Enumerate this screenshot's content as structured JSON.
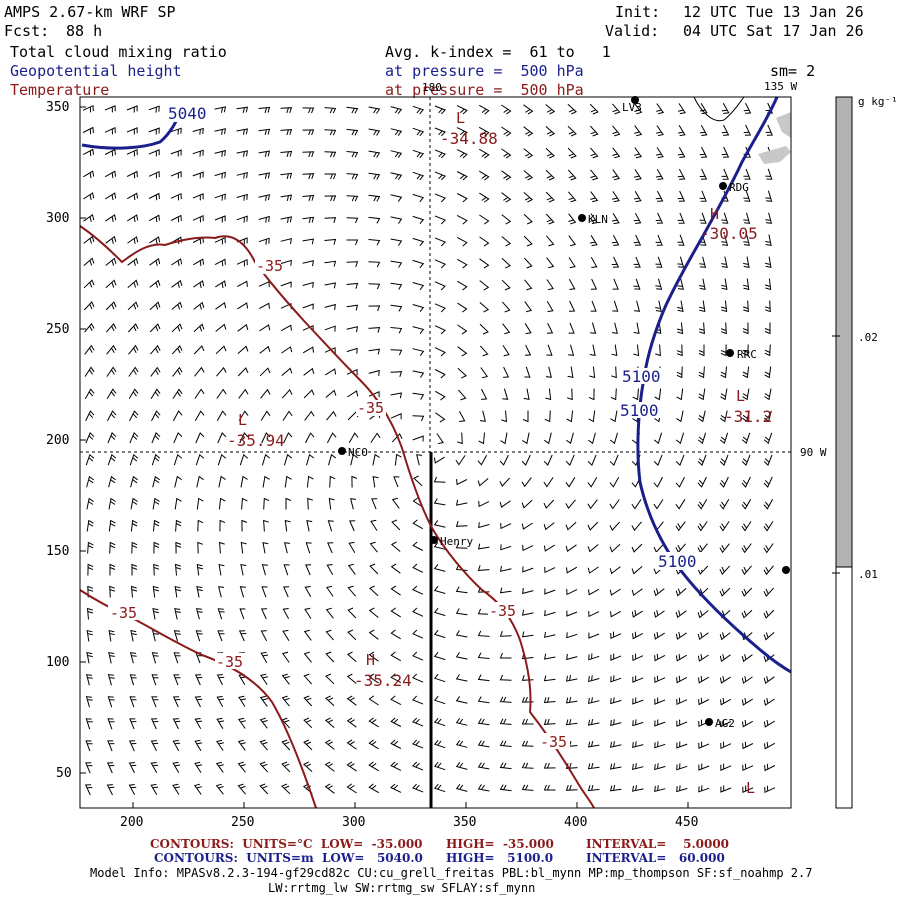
{
  "header": {
    "model": "AMPS 2.67-km WRF SP",
    "fcst_label": "Fcst:",
    "fcst_value": "88 h",
    "init_label": "Init:",
    "init_value": "12 UTC Tue 13 Jan 26",
    "valid_label": "Valid:",
    "valid_value": "04 UTC Sat 17 Jan 26"
  },
  "fields": {
    "f1": "Total cloud mixing ratio",
    "f2": "Geopotential height",
    "f3": "Temperature",
    "avg": "Avg. k-index =  61 to   1",
    "p1": "at pressure =  500 hPa",
    "p2": "at pressure =  500 hPa",
    "sm": "sm= 2"
  },
  "map": {
    "x_ticks": [
      "200",
      "250",
      "300",
      "350",
      "400",
      "450"
    ],
    "y_ticks": [
      "350",
      "300",
      "250",
      "200",
      "150",
      "100",
      "50"
    ],
    "meridian_top": "180",
    "meridian_135": "135 W",
    "meridian_90": "90 W",
    "stations": [
      "RDG",
      "KLN",
      "RRC",
      "NCO",
      "Henry",
      "AG2",
      "LV3"
    ],
    "labels": {
      "l1": "L",
      "l1v": "-34.88",
      "l2": "L",
      "l2v": "-35.94",
      "h1": "H",
      "h1v": "-35.24",
      "h2": "H",
      "h2v": "-30.05",
      "l3": "L",
      "l3v": "-31.2",
      "l4": "L",
      "t35": "-35",
      "z5040": "5040",
      "z5100": "5100"
    },
    "colors": {
      "temperature": "#8b1a1a",
      "height": "#1a1f8c",
      "cloud": "#c8c8c8"
    }
  },
  "colorbar": {
    "unit": "g kg⁻¹",
    "ticks": [
      ".02",
      ".01"
    ],
    "gray_fraction_top": 0.66
  },
  "footer": {
    "line1_a": "CONTOURS:  UNITS=°C  LOW=  -35.000",
    "line1_b": "HIGH=  -35.000",
    "line1_c": "INTERVAL=    5.0000",
    "line2_a": "CONTOURS:  UNITS=m  LOW=   5040.0",
    "line2_b": "HIGH=   5100.0",
    "line2_c": "INTERVAL=   60.000",
    "model_info": "Model Info: MPASv8.2.3-194-gf29cd82c CU:cu_grell_freitas PBL:bl_mynn MP:mp_thompson SF:sf_noahmp 2.7",
    "model_info2": "LW:rrtmg_lw SW:rrtmg_sw SFLAY:sf_mynn"
  }
}
